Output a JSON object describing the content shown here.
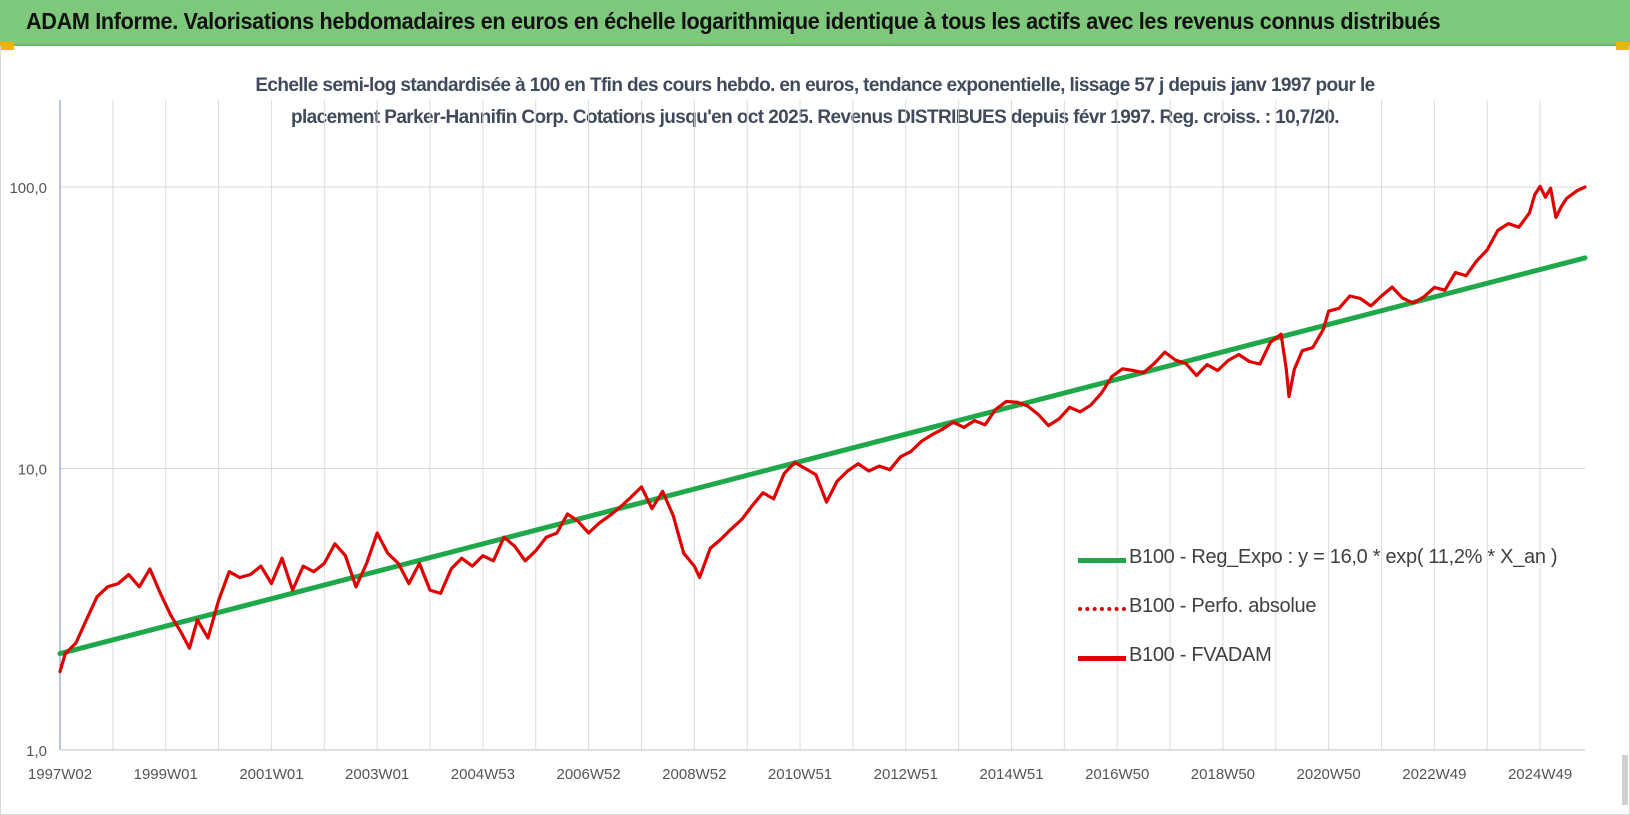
{
  "header": {
    "title": "ADAM Informe. Valorisations hebdomadaires en euros en échelle logarithmique identique à tous les actifs avec les revenus connus distribués",
    "background": "#7dc87a",
    "corner_color": "#f0b400"
  },
  "chart_data": {
    "type": "line",
    "title_line1": "Echelle semi-log standardisée à 100 en Tfin des cours hebdo. en euros, tendance exponentielle, lissage 57 j depuis janv 1997 pour le",
    "title_line2": "placement Parker-Hannifin Corp. Cotations jusqu'en oct 2025. Revenus DISTRIBUES depuis févr 1997. Reg. croiss. : 10,7/20.",
    "y_scale": "log",
    "ylim": [
      1,
      200
    ],
    "y_ticks": [
      {
        "value": 1,
        "label": "1,0"
      },
      {
        "value": 10,
        "label": "10,0"
      },
      {
        "value": 100,
        "label": "100,0"
      }
    ],
    "x_range": [
      1997.0,
      2025.85
    ],
    "x_ticks": [
      {
        "x": 1997.0,
        "label": "1997W02"
      },
      {
        "x": 1999.0,
        "label": "1999W01"
      },
      {
        "x": 2001.0,
        "label": "2001W01"
      },
      {
        "x": 2003.0,
        "label": "2003W01"
      },
      {
        "x": 2005.0,
        "label": "2004W53"
      },
      {
        "x": 2007.0,
        "label": "2006W52"
      },
      {
        "x": 2009.0,
        "label": "2008W52"
      },
      {
        "x": 2011.0,
        "label": "2010W51"
      },
      {
        "x": 2013.0,
        "label": "2012W51"
      },
      {
        "x": 2015.0,
        "label": "2014W51"
      },
      {
        "x": 2017.0,
        "label": "2016W50"
      },
      {
        "x": 2019.0,
        "label": "2018W50"
      },
      {
        "x": 2021.0,
        "label": "2020W50"
      },
      {
        "x": 2023.0,
        "label": "2022W49"
      },
      {
        "x": 2025.0,
        "label": "2024W49"
      }
    ],
    "grid": true,
    "legend_position": "right",
    "series": [
      {
        "name": "B100 - Reg_Expo : y = 16,0 * exp( 11,2% *  X_an )",
        "color": "#1ea84a",
        "style": "solid",
        "points": [
          [
            1997.0,
            2.2
          ],
          [
            2025.85,
            56.0
          ]
        ]
      },
      {
        "name": "B100 - Perfo. absolue",
        "color": "#e00000",
        "style": "dotted",
        "points": []
      },
      {
        "name": "B100 - FVADAM",
        "color": "#e00000",
        "style": "solid",
        "points": [
          [
            1997.0,
            1.9
          ],
          [
            1997.1,
            2.2
          ],
          [
            1997.3,
            2.4
          ],
          [
            1997.5,
            2.9
          ],
          [
            1997.7,
            3.5
          ],
          [
            1997.9,
            3.8
          ],
          [
            1998.1,
            3.9
          ],
          [
            1998.3,
            4.2
          ],
          [
            1998.5,
            3.8
          ],
          [
            1998.7,
            4.4
          ],
          [
            1998.9,
            3.6
          ],
          [
            1999.1,
            3.0
          ],
          [
            1999.3,
            2.6
          ],
          [
            1999.45,
            2.3
          ],
          [
            1999.6,
            2.9
          ],
          [
            1999.8,
            2.5
          ],
          [
            2000.0,
            3.4
          ],
          [
            2000.2,
            4.3
          ],
          [
            2000.4,
            4.1
          ],
          [
            2000.6,
            4.2
          ],
          [
            2000.8,
            4.5
          ],
          [
            2001.0,
            3.9
          ],
          [
            2001.2,
            4.8
          ],
          [
            2001.4,
            3.7
          ],
          [
            2001.6,
            4.5
          ],
          [
            2001.8,
            4.3
          ],
          [
            2002.0,
            4.6
          ],
          [
            2002.2,
            5.4
          ],
          [
            2002.4,
            4.9
          ],
          [
            2002.6,
            3.8
          ],
          [
            2002.8,
            4.6
          ],
          [
            2003.0,
            5.9
          ],
          [
            2003.2,
            5.0
          ],
          [
            2003.4,
            4.6
          ],
          [
            2003.6,
            3.9
          ],
          [
            2003.8,
            4.6
          ],
          [
            2004.0,
            3.7
          ],
          [
            2004.2,
            3.6
          ],
          [
            2004.4,
            4.4
          ],
          [
            2004.6,
            4.8
          ],
          [
            2004.8,
            4.5
          ],
          [
            2005.0,
            4.9
          ],
          [
            2005.2,
            4.7
          ],
          [
            2005.4,
            5.7
          ],
          [
            2005.6,
            5.3
          ],
          [
            2005.8,
            4.7
          ],
          [
            2006.0,
            5.1
          ],
          [
            2006.2,
            5.7
          ],
          [
            2006.4,
            5.9
          ],
          [
            2006.6,
            6.9
          ],
          [
            2006.8,
            6.5
          ],
          [
            2007.0,
            5.9
          ],
          [
            2007.2,
            6.4
          ],
          [
            2007.4,
            6.8
          ],
          [
            2007.6,
            7.3
          ],
          [
            2007.8,
            7.9
          ],
          [
            2008.0,
            8.6
          ],
          [
            2008.2,
            7.2
          ],
          [
            2008.4,
            8.3
          ],
          [
            2008.6,
            6.8
          ],
          [
            2008.8,
            5.0
          ],
          [
            2009.0,
            4.5
          ],
          [
            2009.1,
            4.1
          ],
          [
            2009.3,
            5.2
          ],
          [
            2009.5,
            5.6
          ],
          [
            2009.7,
            6.1
          ],
          [
            2009.9,
            6.6
          ],
          [
            2010.1,
            7.4
          ],
          [
            2010.3,
            8.2
          ],
          [
            2010.5,
            7.8
          ],
          [
            2010.7,
            9.6
          ],
          [
            2010.9,
            10.5
          ],
          [
            2011.1,
            10.0
          ],
          [
            2011.3,
            9.5
          ],
          [
            2011.5,
            7.6
          ],
          [
            2011.7,
            9.0
          ],
          [
            2011.9,
            9.8
          ],
          [
            2012.1,
            10.4
          ],
          [
            2012.3,
            9.8
          ],
          [
            2012.5,
            10.2
          ],
          [
            2012.7,
            9.9
          ],
          [
            2012.9,
            11.0
          ],
          [
            2013.1,
            11.5
          ],
          [
            2013.3,
            12.5
          ],
          [
            2013.5,
            13.2
          ],
          [
            2013.7,
            13.8
          ],
          [
            2013.9,
            14.6
          ],
          [
            2014.1,
            14.0
          ],
          [
            2014.3,
            14.8
          ],
          [
            2014.5,
            14.3
          ],
          [
            2014.7,
            16.2
          ],
          [
            2014.9,
            17.3
          ],
          [
            2015.1,
            17.2
          ],
          [
            2015.3,
            16.7
          ],
          [
            2015.5,
            15.6
          ],
          [
            2015.7,
            14.2
          ],
          [
            2015.9,
            15.0
          ],
          [
            2016.1,
            16.5
          ],
          [
            2016.3,
            15.9
          ],
          [
            2016.5,
            16.8
          ],
          [
            2016.7,
            18.5
          ],
          [
            2016.9,
            21.2
          ],
          [
            2017.1,
            22.6
          ],
          [
            2017.3,
            22.3
          ],
          [
            2017.5,
            21.9
          ],
          [
            2017.7,
            23.6
          ],
          [
            2017.9,
            25.9
          ],
          [
            2018.1,
            24.3
          ],
          [
            2018.3,
            23.6
          ],
          [
            2018.5,
            21.4
          ],
          [
            2018.7,
            23.4
          ],
          [
            2018.9,
            22.3
          ],
          [
            2019.1,
            24.2
          ],
          [
            2019.3,
            25.4
          ],
          [
            2019.5,
            24.0
          ],
          [
            2019.7,
            23.5
          ],
          [
            2019.9,
            28.1
          ],
          [
            2020.1,
            30.0
          ],
          [
            2020.2,
            22.5
          ],
          [
            2020.25,
            18.0
          ],
          [
            2020.35,
            22.5
          ],
          [
            2020.5,
            26.2
          ],
          [
            2020.7,
            26.9
          ],
          [
            2020.9,
            31.2
          ],
          [
            2021.0,
            36.2
          ],
          [
            2021.2,
            37.1
          ],
          [
            2021.4,
            41.0
          ],
          [
            2021.6,
            40.2
          ],
          [
            2021.8,
            37.8
          ],
          [
            2022.0,
            41.0
          ],
          [
            2022.2,
            44.1
          ],
          [
            2022.4,
            40.3
          ],
          [
            2022.6,
            38.7
          ],
          [
            2022.8,
            40.7
          ],
          [
            2023.0,
            44.0
          ],
          [
            2023.2,
            43.0
          ],
          [
            2023.4,
            49.7
          ],
          [
            2023.6,
            48.4
          ],
          [
            2023.8,
            54.6
          ],
          [
            2024.0,
            59.8
          ],
          [
            2024.2,
            70.1
          ],
          [
            2024.4,
            74.1
          ],
          [
            2024.6,
            72.0
          ],
          [
            2024.8,
            81.0
          ],
          [
            2024.9,
            94.0
          ],
          [
            2025.0,
            100.5
          ],
          [
            2025.1,
            92.0
          ],
          [
            2025.2,
            99.0
          ],
          [
            2025.3,
            78.0
          ],
          [
            2025.4,
            85.0
          ],
          [
            2025.5,
            91.0
          ],
          [
            2025.6,
            94.0
          ],
          [
            2025.7,
            97.0
          ],
          [
            2025.85,
            100.0
          ]
        ]
      }
    ]
  }
}
